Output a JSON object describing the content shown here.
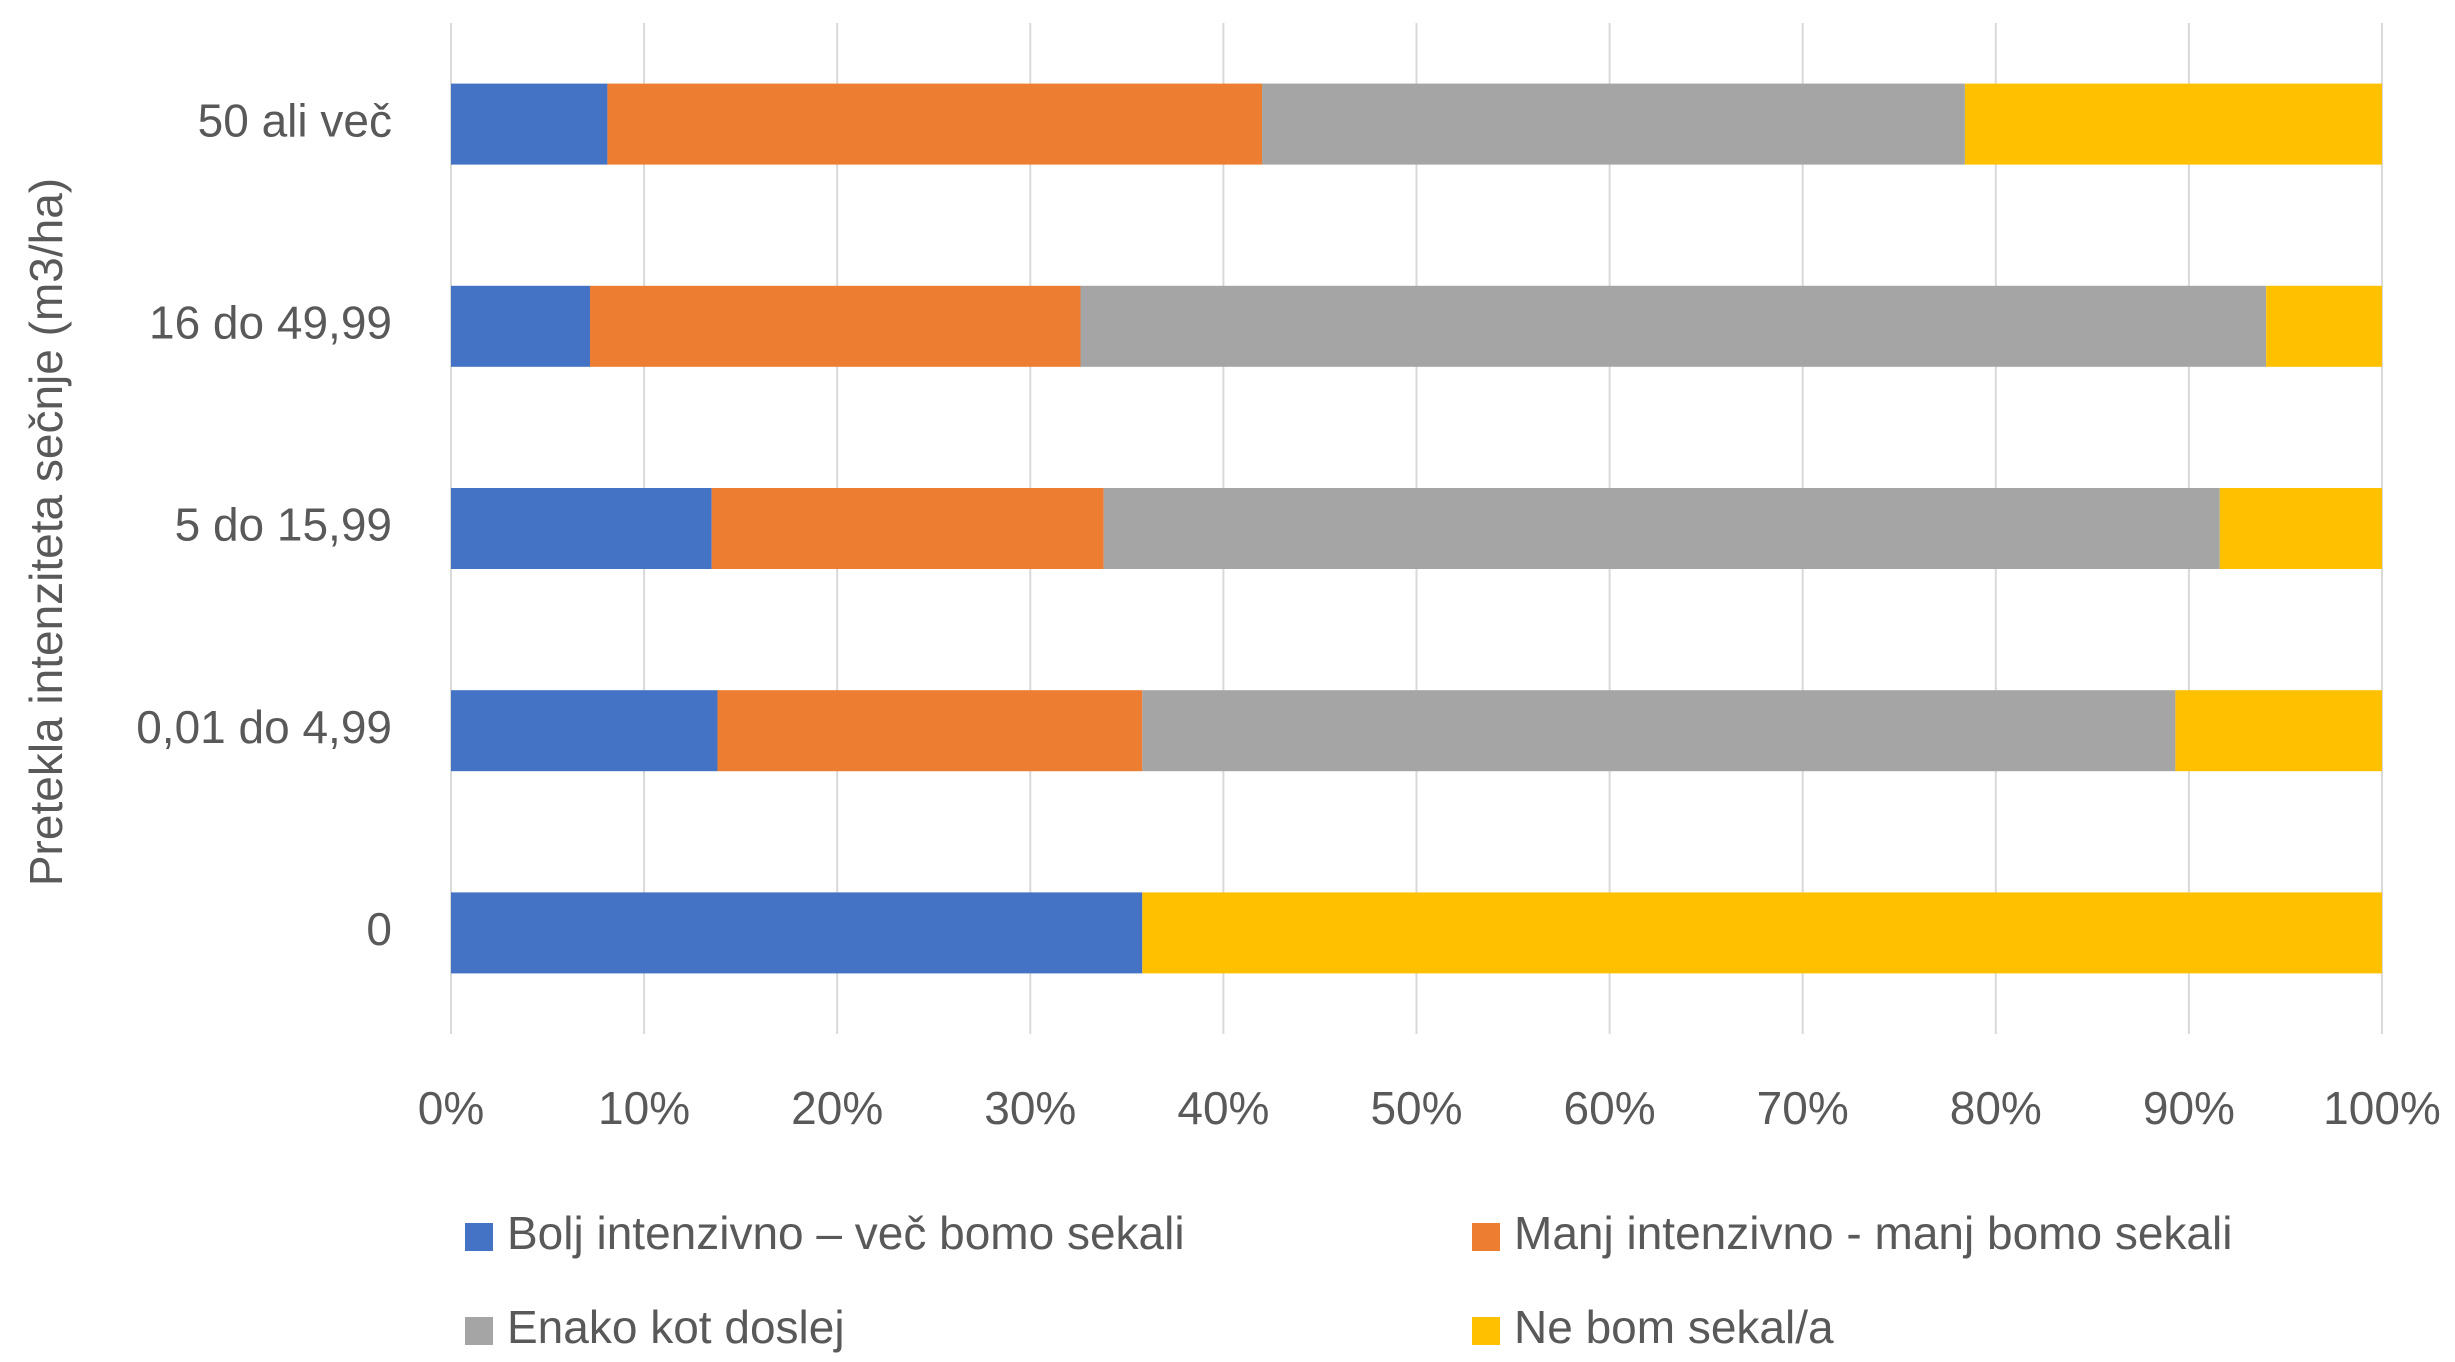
{
  "chart_data": {
    "type": "stacked-bar-horizontal",
    "y_axis_label": "Pretekla intenziteta sečnje (m3/ha)",
    "categories": [
      "50 ali več",
      "16 do 49,99",
      "5 do 15,99",
      "0,01 do 4,99",
      "0"
    ],
    "series": [
      {
        "name": "Bolj intenzivno – več bomo sekali",
        "color": "#4472c4",
        "values": [
          8.1,
          7.2,
          13.5,
          13.8,
          35.8
        ]
      },
      {
        "name": "Manj intenzivno - manj bomo sekali",
        "color": "#ed7d31",
        "values": [
          33.9,
          25.4,
          20.3,
          22.0,
          0
        ]
      },
      {
        "name": "Enako kot doslej",
        "color": "#a5a5a5",
        "values": [
          36.4,
          61.4,
          57.8,
          53.5,
          0
        ]
      },
      {
        "name": "Ne bom sekal/a",
        "color": "#ffc000",
        "values": [
          21.6,
          6.0,
          8.4,
          10.7,
          64.2
        ]
      }
    ],
    "xlim": [
      0,
      100
    ],
    "xticks": [
      {
        "value": 0,
        "label": "0%"
      },
      {
        "value": 10,
        "label": "10%"
      },
      {
        "value": 20,
        "label": "20%"
      },
      {
        "value": 30,
        "label": "30%"
      },
      {
        "value": 40,
        "label": "40%"
      },
      {
        "value": 50,
        "label": "50%"
      },
      {
        "value": 60,
        "label": "60%"
      },
      {
        "value": 70,
        "label": "70%"
      },
      {
        "value": 80,
        "label": "80%"
      },
      {
        "value": 90,
        "label": "90%"
      },
      {
        "value": 100,
        "label": "100%"
      }
    ],
    "grid": true,
    "legend": "bottom"
  }
}
